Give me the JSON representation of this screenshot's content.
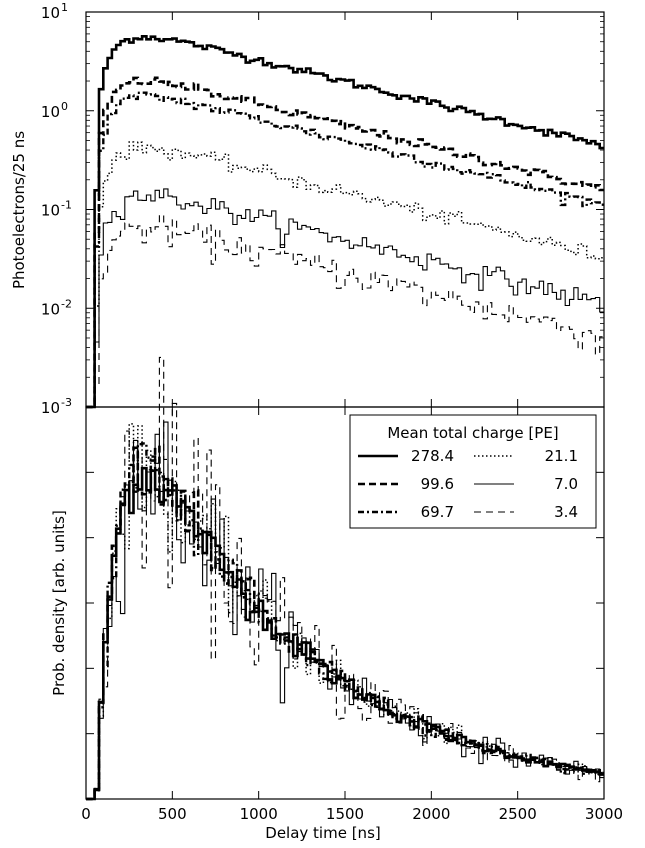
{
  "chart_data": [
    {
      "type": "line",
      "subtype": "step-histogram",
      "yscale": "log",
      "ylabel": "Photoelectrons/25 ns",
      "xlim": [
        0,
        3000
      ],
      "ylim": [
        0.001,
        10
      ],
      "ytick_bases": [
        "10",
        "10",
        "10",
        "10",
        "10"
      ],
      "ytick_exponents": [
        "1",
        "0",
        "-1",
        "-2",
        "-3"
      ],
      "ytick_values": [
        10,
        1,
        0.1,
        0.01,
        0.001
      ],
      "bin_width_ns": 25,
      "series": [
        {
          "name": "278.4",
          "style": "thick-solid",
          "peak_x": 700,
          "peak_y": 5.6,
          "end_y": 0.3
        },
        {
          "name": "99.6",
          "style": "thick-dashed",
          "peak_x": 700,
          "peak_y": 2.0,
          "end_y": 0.1
        },
        {
          "name": "69.7",
          "style": "dash-dot",
          "peak_x": 700,
          "peak_y": 1.4,
          "end_y": 0.07
        },
        {
          "name": "21.1",
          "style": "dotted",
          "peak_x": 700,
          "peak_y": 0.42,
          "end_y": 0.02
        },
        {
          "name": "7.0",
          "style": "thin-solid",
          "peak_x": 700,
          "peak_y": 0.14,
          "end_y": 0.006
        },
        {
          "name": "3.4",
          "style": "thin-dashed",
          "peak_x": 700,
          "peak_y": 0.065,
          "end_y": 0.002
        }
      ]
    },
    {
      "type": "line",
      "subtype": "step-histogram",
      "xlabel": "Delay time [ns]",
      "ylabel": "Prob. density [arb. units]",
      "xlim": [
        0,
        3000
      ],
      "ylim": [
        0,
        1.2
      ],
      "xticks": [
        0,
        500,
        1000,
        1500,
        2000,
        2500,
        3000
      ],
      "xtick_labels": [
        "0",
        "500",
        "1000",
        "1500",
        "2000",
        "2500",
        "3000"
      ],
      "ytick_values": [
        0.2,
        0.4,
        0.6,
        0.8,
        1.0
      ],
      "ytick_labels_shown": false,
      "legend": {
        "title": "Mean total charge [PE]",
        "placement": "top-right",
        "columns": 2,
        "entries": [
          "278.4",
          "99.6",
          "69.7",
          "21.1",
          "7.0",
          "3.4"
        ]
      }
    }
  ]
}
